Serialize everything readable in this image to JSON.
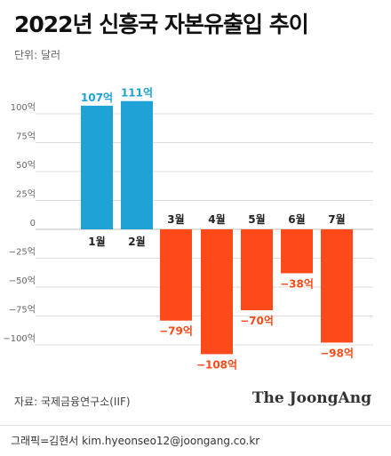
{
  "title": "2022년 신흥국 자본유출입 추이",
  "unit_label": "단위: 달러",
  "source": "자료: 국제금융연구소(IIF)",
  "logo": "The JoongAng",
  "credit": "그래픽=김현서 kim.hyeonseo12@joongang.co.kr",
  "colors": {
    "positive": "#1fa3d6",
    "negative": "#fc4a1a",
    "grid": "#dcdcdc",
    "axis_text": "#666666"
  },
  "chart_data": {
    "type": "bar",
    "title": "2022년 신흥국 자본유출입 추이",
    "unit": "단위: 달러",
    "categories": [
      "1월",
      "2월",
      "3월",
      "4월",
      "5월",
      "6월",
      "7월"
    ],
    "values": [
      107,
      111,
      -79,
      -108,
      -70,
      -38,
      -98
    ],
    "data_labels": [
      "107억",
      "111억",
      "−79억",
      "−108억",
      "−70억",
      "−38억",
      "−98억"
    ],
    "yticks": [
      100,
      75,
      50,
      25,
      0,
      -25,
      -50,
      -75,
      -100
    ],
    "ytick_labels": [
      "100억",
      "75억",
      "50억",
      "25억",
      "0",
      "−25억",
      "−50억",
      "−75억",
      "−100억"
    ],
    "ylim": [
      -120,
      125
    ],
    "grid": true,
    "legend": "none"
  }
}
